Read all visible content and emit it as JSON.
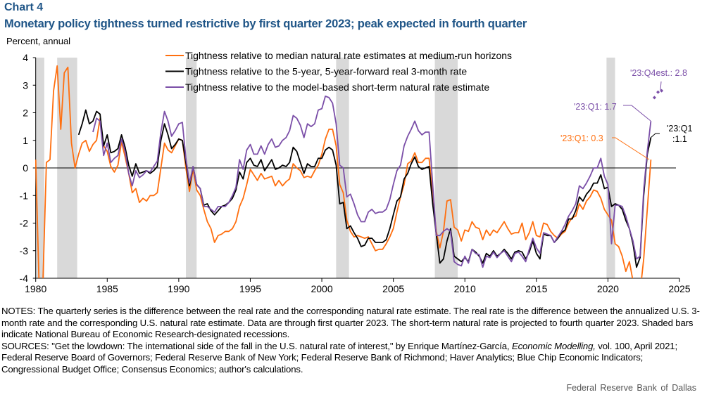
{
  "header": {
    "chart_label": "Chart 4",
    "title": "Monetary policy tightness turned restrictive by first quarter 2023; peak expected in fourth quarter",
    "unit": "Percent, annual"
  },
  "chart_data": {
    "type": "line",
    "title": "Monetary policy tightness turned restrictive by first quarter 2023; peak expected in fourth quarter",
    "ylabel": "Percent, annual",
    "xlim": [
      1980,
      2025
    ],
    "ylim": [
      -4,
      4
    ],
    "xticks": [
      "1980",
      "1985",
      "1990",
      "1995",
      "2000",
      "2005",
      "2010",
      "2015",
      "2020",
      "2025"
    ],
    "yticks": [
      "4",
      "3",
      "2",
      "1",
      "0",
      "-1",
      "-2",
      "-3",
      "-4"
    ],
    "frequency": "quarterly",
    "legend_position": "top-center",
    "grid": false,
    "recessions": [
      [
        1980.0,
        1980.6
      ],
      [
        1981.5,
        1982.9
      ],
      [
        1990.5,
        1991.25
      ],
      [
        2001.0,
        2001.9
      ],
      [
        2007.9,
        2009.5
      ],
      [
        2019.9,
        2020.5
      ]
    ],
    "series": [
      {
        "name": "Tightness relative to median natural rate estimates at medium-run horizons",
        "color": "#ff6f0f",
        "start": "1980:Q1",
        "values": [
          0.3,
          -4.5,
          -4.2,
          0.2,
          0.3,
          2.8,
          3.7,
          1.4,
          3.45,
          3.65,
          0.9,
          0.0,
          0.5,
          0.9,
          1.0,
          0.6,
          0.85,
          1.0,
          1.8,
          0.8,
          0.6,
          0.05,
          -0.15,
          0.1,
          0.95,
          0.4,
          -0.2,
          -0.9,
          -0.75,
          -1.25,
          -1.1,
          -1.2,
          -1.0,
          -1.0,
          -0.9,
          0.0,
          0.9,
          0.65,
          0.55,
          0.8,
          1.05,
          1.0,
          0.0,
          -0.85,
          -0.05,
          -0.8,
          -1.0,
          -1.5,
          -1.95,
          -2.2,
          -2.7,
          -2.45,
          -2.4,
          -2.3,
          -2.3,
          -2.2,
          -1.95,
          -1.4,
          -1.1,
          -0.6,
          -0.05,
          -0.25,
          -0.45,
          -0.2,
          -0.4,
          -0.35,
          -0.3,
          -0.65,
          -0.45,
          -0.65,
          -0.5,
          -0.4,
          0.15,
          0.0,
          -0.1,
          -0.35,
          -0.3,
          -0.35,
          -0.1,
          0.1,
          0.5,
          1.05,
          1.4,
          1.4,
          0.8,
          -0.6,
          -0.9,
          -1.9,
          -2.3,
          -2.5,
          -2.45,
          -2.5,
          -2.55,
          -2.5,
          -2.75,
          -3.0,
          -2.95,
          -2.95,
          -2.75,
          -2.5,
          -2.2,
          -1.6,
          -1.05,
          -0.6,
          0.15,
          0.25,
          0.55,
          0.2,
          0.2,
          0.35,
          0.35,
          -1.0,
          -2.3,
          -2.9,
          -2.3,
          -1.2,
          -1.15,
          -2.15,
          -2.25,
          -2.65,
          -2.25,
          -2.3,
          -1.95,
          -2.15,
          -2.2,
          -2.6,
          -2.25,
          -2.45,
          -2.25,
          -2.35,
          -2.15,
          -1.95,
          -2.2,
          -2.4,
          -2.35,
          -2.35,
          -2.0,
          -2.6,
          -2.35,
          -1.95,
          -2.45,
          -2.5,
          -2.0,
          -2.05,
          -2.3,
          -2.45,
          -2.55,
          -2.4,
          -2.3,
          -2.0,
          -1.8,
          -1.75,
          -1.3,
          -1.5,
          -1.2,
          -1.05,
          -0.8,
          -0.85,
          -1.1,
          -1.5,
          -1.7,
          -1.9,
          -2.75,
          -2.85,
          -3.2,
          -3.75,
          -3.4,
          -4.1,
          -4.5,
          -4.5,
          -3.3,
          -1.5,
          0.3
        ]
      },
      {
        "name": "Tightness relative to the 5-year, 5-year-forward real 3-month rate",
        "color": "#000000",
        "start": "1983:Q1",
        "values": [
          1.2,
          1.6,
          2.1,
          1.6,
          1.7,
          2.05,
          1.95,
          0.8,
          1.2,
          0.55,
          0.6,
          0.7,
          1.2,
          0.75,
          0.1,
          -0.3,
          0.15,
          -0.2,
          -0.15,
          -0.1,
          -0.2,
          -0.1,
          0.05,
          1.0,
          1.6,
          1.2,
          0.7,
          0.85,
          1.05,
          1.0,
          0.2,
          -0.65,
          0.05,
          -0.6,
          -0.75,
          -1.35,
          -1.3,
          -1.55,
          -1.7,
          -1.55,
          -1.4,
          -1.35,
          -1.25,
          -1.1,
          -0.8,
          -0.15,
          -0.4,
          0.2,
          0.35,
          0.1,
          0.05,
          0.3,
          -0.1,
          0.1,
          0.3,
          -0.05,
          0.0,
          0.1,
          0.05,
          0.2,
          0.75,
          0.6,
          0.2,
          -0.2,
          0.15,
          0.05,
          0.05,
          0.35,
          0.35,
          0.65,
          0.75,
          0.65,
          0.1,
          -1.3,
          -1.25,
          -2.2,
          -2.1,
          -2.35,
          -2.55,
          -2.85,
          -2.8,
          -2.55,
          -2.55,
          -2.7,
          -2.7,
          -2.7,
          -2.6,
          -2.2,
          -1.7,
          -1.2,
          -1.05,
          -0.4,
          -0.2,
          0.15,
          0.4,
          0.05,
          -0.05,
          0.0,
          0.05,
          -1.3,
          -2.4,
          -3.45,
          -3.3,
          -2.65,
          -2.2,
          -3.2,
          -3.3,
          -3.4,
          -3.25,
          -3.4,
          -2.95,
          -3.05,
          -3.2,
          -3.45,
          -3.1,
          -3.2,
          -3.0,
          -3.2,
          -3.1,
          -2.95,
          -3.1,
          -3.3,
          -3.05,
          -3.0,
          -3.05,
          -3.3,
          -3.05,
          -2.65,
          -3.1,
          -3.3,
          -2.4,
          -2.45,
          -2.45,
          -2.7,
          -2.55,
          -2.35,
          -2.25,
          -1.85,
          -1.85,
          -1.55,
          -1.05,
          -1.2,
          -0.95,
          -0.8,
          -0.55,
          -0.55,
          -0.25,
          -0.75,
          -0.7,
          -1.4,
          -1.3,
          -1.35,
          -1.5,
          -1.9,
          -2.2,
          -2.75,
          -3.6,
          -3.25,
          -1.0,
          0.5,
          1.1
        ]
      },
      {
        "name": "Tightness relative to the model-based short-term natural rate estimate",
        "color": "#7b4fa8",
        "start": "1984:Q1",
        "values": [
          1.3,
          1.8,
          1.7,
          0.45,
          0.9,
          0.2,
          0.35,
          0.45,
          1.05,
          0.6,
          -0.2,
          -0.65,
          -0.1,
          -0.35,
          -0.25,
          -0.1,
          -0.15,
          0.05,
          0.25,
          1.3,
          2.05,
          1.7,
          1.15,
          1.35,
          1.6,
          1.65,
          0.35,
          -0.55,
          0.05,
          -0.6,
          -0.75,
          -1.4,
          -1.4,
          -1.5,
          -1.6,
          -1.4,
          -1.4,
          -1.4,
          -1.25,
          -1.0,
          -0.7,
          0.3,
          -0.05,
          0.65,
          0.85,
          0.5,
          0.5,
          0.8,
          0.5,
          0.85,
          1.05,
          0.75,
          0.8,
          1.0,
          1.1,
          1.35,
          1.9,
          1.8,
          1.55,
          1.1,
          1.6,
          1.5,
          1.6,
          2.1,
          2.15,
          2.6,
          2.55,
          2.35,
          1.6,
          0.1,
          0.0,
          -1.05,
          -0.95,
          -1.3,
          -1.7,
          -1.95,
          -1.95,
          -1.6,
          -1.5,
          -1.65,
          -1.6,
          -1.6,
          -1.5,
          -1.15,
          -0.6,
          -0.1,
          0.1,
          0.8,
          1.15,
          1.4,
          1.7,
          1.35,
          1.2,
          1.3,
          1.3,
          -0.6,
          -2.45,
          -2.45,
          -2.3,
          -2.2,
          -2.3,
          -3.4,
          -3.5,
          -3.55,
          -3.2,
          -3.45,
          -2.95,
          -3.1,
          -3.15,
          -3.6,
          -3.2,
          -3.25,
          -3.05,
          -3.25,
          -3.1,
          -3.0,
          -3.2,
          -3.4,
          -3.1,
          -3.05,
          -3.2,
          -3.4,
          -2.95,
          -2.55,
          -2.9,
          -3.1,
          -2.35,
          -2.4,
          -2.45,
          -2.7,
          -2.5,
          -2.3,
          -2.05,
          -1.75,
          -1.55,
          -1.3,
          -0.65,
          -0.75,
          -0.55,
          -0.3,
          0.0,
          0.0,
          0.35,
          -0.3,
          -0.6,
          -2.75,
          -1.35,
          -1.35,
          -1.4,
          -1.75,
          -2.2,
          -2.65,
          -3.3,
          -3.2,
          -0.8,
          0.6,
          1.7
        ],
        "estimates": {
          "start": "2023:Q2",
          "values": [
            2.55,
            2.75,
            2.8
          ]
        }
      }
    ],
    "annotations": {
      "purple_est": "'23:Q4est.: 2.8",
      "purple_q1": "'23:Q1: 1.7",
      "orange_q1": "'23:Q1: 0.3",
      "black_q1_a": "'23:Q1",
      "black_q1_b": ":1.1"
    }
  },
  "notes": {
    "notes_text": "NOTES: The quarterly series is the difference between the real rate and the corresponding natural rate estimate. The real rate is the difference between the annualized U.S. 3-month rate and the corresponding U.S. natural rate estimate. Data are through first quarter 2023. The short-term natural rate is projected to fourth quarter 2023. Shaded bars indicate National Bureau of Economic Research-designated recessions.",
    "sources_pre": "SOURCES: \"Get the lowdown: The international side of the fall in the U.S. natural rate of interest,\" by Enrique Martínez-García, ",
    "sources_journal": "Economic Modelling,",
    "sources_post": " vol. 100, April 2021; Federal Reserve Board of Governors; Federal Reserve Bank of New York; Federal Reserve Bank of Richmond; Haver Analytics; Blue Chip Economic Indicators; Congressional Budget Office; Consensus Economics; author's calculations."
  },
  "credit": "Federal Reserve Bank of Dallas"
}
